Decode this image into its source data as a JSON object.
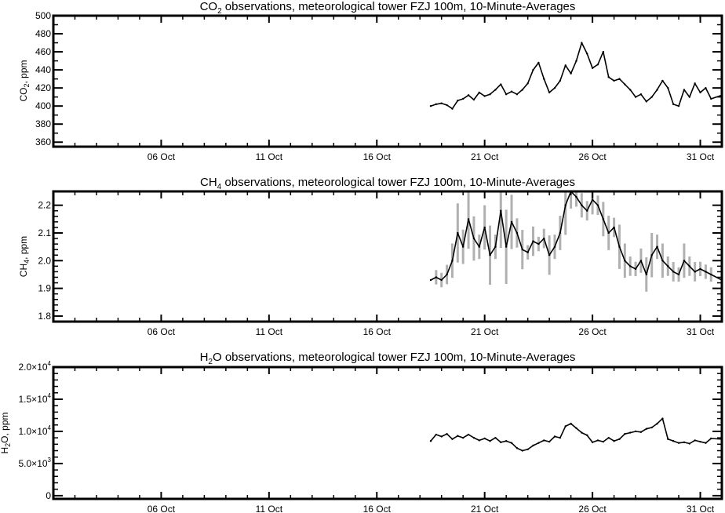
{
  "chart_data": [
    {
      "type": "line",
      "title": {
        "pre": "CO",
        "sub": "2",
        "post": " observations, meteorological tower FZJ 100m, 10-Minute-Averages"
      },
      "ylabel": {
        "pre": "CO",
        "sub": "2",
        "post": ", ppm"
      },
      "x_axis": {
        "type": "date",
        "range": [
          "2023-10-01",
          "2023-11-01"
        ],
        "ticks": [
          "06 Oct",
          "11 Oct",
          "16 Oct",
          "21 Oct",
          "26 Oct",
          "31 Oct"
        ]
      },
      "ylim": [
        355,
        500
      ],
      "y_ticks": [
        {
          "value": 360,
          "label": "360"
        },
        {
          "value": 380,
          "label": "380"
        },
        {
          "value": 400,
          "label": "400"
        },
        {
          "value": 420,
          "label": "420"
        },
        {
          "value": 440,
          "label": "440"
        },
        {
          "value": 460,
          "label": "460"
        },
        {
          "value": 480,
          "label": "480"
        },
        {
          "value": 500,
          "label": "500"
        }
      ],
      "series": [
        {
          "color": "#000000",
          "points": [
            [
              "2023-10-18T12:00",
              400
            ],
            [
              "2023-10-18T18:00",
              402
            ],
            [
              "2023-10-19T00:00",
              403
            ],
            [
              "2023-10-19T06:00",
              401
            ],
            [
              "2023-10-19T12:00",
              397
            ],
            [
              "2023-10-19T18:00",
              406
            ],
            [
              "2023-10-20T00:00",
              408
            ],
            [
              "2023-10-20T06:00",
              412
            ],
            [
              "2023-10-20T12:00",
              407
            ],
            [
              "2023-10-20T18:00",
              415
            ],
            [
              "2023-10-21T00:00",
              411
            ],
            [
              "2023-10-21T06:00",
              413
            ],
            [
              "2023-10-21T12:00",
              418
            ],
            [
              "2023-10-21T18:00",
              424
            ],
            [
              "2023-10-22T00:00",
              413
            ],
            [
              "2023-10-22T06:00",
              416
            ],
            [
              "2023-10-22T12:00",
              413
            ],
            [
              "2023-10-22T18:00",
              418
            ],
            [
              "2023-10-23T00:00",
              425
            ],
            [
              "2023-10-23T06:00",
              440
            ],
            [
              "2023-10-23T12:00",
              448
            ],
            [
              "2023-10-23T18:00",
              430
            ],
            [
              "2023-10-24T00:00",
              415
            ],
            [
              "2023-10-24T06:00",
              420
            ],
            [
              "2023-10-24T12:00",
              428
            ],
            [
              "2023-10-24T18:00",
              445
            ],
            [
              "2023-10-25T00:00",
              436
            ],
            [
              "2023-10-25T06:00",
              450
            ],
            [
              "2023-10-25T12:00",
              470
            ],
            [
              "2023-10-25T18:00",
              458
            ],
            [
              "2023-10-26T00:00",
              442
            ],
            [
              "2023-10-26T06:00",
              446
            ],
            [
              "2023-10-26T12:00",
              460
            ],
            [
              "2023-10-26T18:00",
              432
            ],
            [
              "2023-10-27T00:00",
              428
            ],
            [
              "2023-10-27T06:00",
              430
            ],
            [
              "2023-10-27T12:00",
              424
            ],
            [
              "2023-10-27T18:00",
              418
            ],
            [
              "2023-10-28T00:00",
              410
            ],
            [
              "2023-10-28T06:00",
              413
            ],
            [
              "2023-10-28T12:00",
              405
            ],
            [
              "2023-10-28T18:00",
              410
            ],
            [
              "2023-10-29T00:00",
              418
            ],
            [
              "2023-10-29T06:00",
              428
            ],
            [
              "2023-10-29T12:00",
              420
            ],
            [
              "2023-10-29T18:00",
              402
            ],
            [
              "2023-10-30T00:00",
              400
            ],
            [
              "2023-10-30T06:00",
              418
            ],
            [
              "2023-10-30T12:00",
              410
            ],
            [
              "2023-10-30T18:00",
              425
            ],
            [
              "2023-10-31T00:00",
              415
            ],
            [
              "2023-10-31T06:00",
              420
            ],
            [
              "2023-10-31T12:00",
              408
            ],
            [
              "2023-11-01T00:00",
              412
            ]
          ]
        }
      ]
    },
    {
      "type": "line",
      "title": {
        "pre": "CH",
        "sub": "4",
        "post": " observations, meteorological tower FZJ 100m, 10-Minute-Averages"
      },
      "ylabel": {
        "pre": "CH",
        "sub": "4",
        "post": ", ppm"
      },
      "x_axis": {
        "type": "date",
        "range": [
          "2023-10-01",
          "2023-11-01"
        ],
        "ticks": [
          "06 Oct",
          "11 Oct",
          "16 Oct",
          "21 Oct",
          "26 Oct",
          "31 Oct"
        ]
      },
      "ylim": [
        1.78,
        2.25
      ],
      "y_ticks": [
        {
          "value": 1.8,
          "label": "1.8"
        },
        {
          "value": 1.9,
          "label": "1.9"
        },
        {
          "value": 2.0,
          "label": "2.0"
        },
        {
          "value": 2.1,
          "label": "2.1"
        },
        {
          "value": 2.2,
          "label": "2.2"
        }
      ],
      "series": [
        {
          "color": "#000000",
          "band_color": "#b0b0b0",
          "points": [
            [
              "2023-10-18T12:00",
              1.93
            ],
            [
              "2023-10-18T18:00",
              1.94
            ],
            [
              "2023-10-19T00:00",
              1.93
            ],
            [
              "2023-10-19T06:00",
              1.95
            ],
            [
              "2023-10-19T12:00",
              2.0
            ],
            [
              "2023-10-19T18:00",
              2.1
            ],
            [
              "2023-10-20T00:00",
              2.05
            ],
            [
              "2023-10-20T06:00",
              2.15
            ],
            [
              "2023-10-20T12:00",
              2.08
            ],
            [
              "2023-10-20T18:00",
              2.05
            ],
            [
              "2023-10-21T00:00",
              2.12
            ],
            [
              "2023-10-21T06:00",
              2.02
            ],
            [
              "2023-10-21T12:00",
              2.05
            ],
            [
              "2023-10-21T18:00",
              2.18
            ],
            [
              "2023-10-22T00:00",
              2.05
            ],
            [
              "2023-10-22T06:00",
              2.14
            ],
            [
              "2023-10-22T12:00",
              2.1
            ],
            [
              "2023-10-22T18:00",
              2.04
            ],
            [
              "2023-10-23T00:00",
              2.03
            ],
            [
              "2023-10-23T06:00",
              2.07
            ],
            [
              "2023-10-23T12:00",
              2.06
            ],
            [
              "2023-10-23T18:00",
              2.08
            ],
            [
              "2023-10-24T00:00",
              2.02
            ],
            [
              "2023-10-24T06:00",
              2.05
            ],
            [
              "2023-10-24T12:00",
              2.1
            ],
            [
              "2023-10-24T18:00",
              2.2
            ],
            [
              "2023-10-25T00:00",
              2.25
            ],
            [
              "2023-10-25T06:00",
              2.23
            ],
            [
              "2023-10-25T12:00",
              2.2
            ],
            [
              "2023-10-25T18:00",
              2.18
            ],
            [
              "2023-10-26T00:00",
              2.22
            ],
            [
              "2023-10-26T06:00",
              2.2
            ],
            [
              "2023-10-26T12:00",
              2.15
            ],
            [
              "2023-10-26T18:00",
              2.1
            ],
            [
              "2023-10-27T00:00",
              2.12
            ],
            [
              "2023-10-27T06:00",
              2.05
            ],
            [
              "2023-10-27T12:00",
              2.0
            ],
            [
              "2023-10-27T18:00",
              1.98
            ],
            [
              "2023-10-28T00:00",
              1.97
            ],
            [
              "2023-10-28T06:00",
              2.0
            ],
            [
              "2023-10-28T12:00",
              1.95
            ],
            [
              "2023-10-28T18:00",
              2.02
            ],
            [
              "2023-10-29T00:00",
              2.05
            ],
            [
              "2023-10-29T06:00",
              2.0
            ],
            [
              "2023-10-29T12:00",
              1.98
            ],
            [
              "2023-10-29T18:00",
              1.96
            ],
            [
              "2023-10-30T00:00",
              1.95
            ],
            [
              "2023-10-30T06:00",
              2.0
            ],
            [
              "2023-10-30T12:00",
              1.98
            ],
            [
              "2023-10-30T18:00",
              1.96
            ],
            [
              "2023-10-31T00:00",
              1.97
            ],
            [
              "2023-10-31T06:00",
              1.96
            ],
            [
              "2023-10-31T12:00",
              1.95
            ],
            [
              "2023-11-01T00:00",
              1.93
            ]
          ]
        }
      ]
    },
    {
      "type": "line",
      "title": {
        "pre": "H",
        "sub": "2",
        "post": "O observations, meteorological tower FZJ 100m, 10-Minute-Averages"
      },
      "ylabel": {
        "pre": "H",
        "sub": "2",
        "post": "O, ppm"
      },
      "x_axis": {
        "type": "date",
        "range": [
          "2023-10-01",
          "2023-11-01"
        ],
        "ticks": [
          "06 Oct",
          "11 Oct",
          "16 Oct",
          "21 Oct",
          "26 Oct",
          "31 Oct"
        ]
      },
      "ylim": [
        -500,
        20000
      ],
      "y_ticks": [
        {
          "value": 0,
          "label": "0"
        },
        {
          "value": 5000,
          "mantissa": "5.0",
          "exponent": "3"
        },
        {
          "value": 10000,
          "mantissa": "1.0",
          "exponent": "4"
        },
        {
          "value": 15000,
          "mantissa": "1.5",
          "exponent": "4"
        },
        {
          "value": 20000,
          "mantissa": "2.0",
          "exponent": "4"
        }
      ],
      "series": [
        {
          "color": "#000000",
          "points": [
            [
              "2023-10-18T12:00",
              8500
            ],
            [
              "2023-10-18T18:00",
              9500
            ],
            [
              "2023-10-19T00:00",
              9200
            ],
            [
              "2023-10-19T06:00",
              9600
            ],
            [
              "2023-10-19T12:00",
              8800
            ],
            [
              "2023-10-19T18:00",
              9300
            ],
            [
              "2023-10-20T00:00",
              9000
            ],
            [
              "2023-10-20T06:00",
              9500
            ],
            [
              "2023-10-20T12:00",
              9000
            ],
            [
              "2023-10-20T18:00",
              8600
            ],
            [
              "2023-10-21T00:00",
              8900
            ],
            [
              "2023-10-21T06:00",
              8500
            ],
            [
              "2023-10-21T12:00",
              9000
            ],
            [
              "2023-10-21T18:00",
              8300
            ],
            [
              "2023-10-22T00:00",
              8500
            ],
            [
              "2023-10-22T06:00",
              8200
            ],
            [
              "2023-10-22T12:00",
              7400
            ],
            [
              "2023-10-22T18:00",
              7000
            ],
            [
              "2023-10-23T00:00",
              7200
            ],
            [
              "2023-10-23T06:00",
              7800
            ],
            [
              "2023-10-23T12:00",
              8200
            ],
            [
              "2023-10-23T18:00",
              8600
            ],
            [
              "2023-10-24T00:00",
              8400
            ],
            [
              "2023-10-24T06:00",
              9200
            ],
            [
              "2023-10-24T12:00",
              9000
            ],
            [
              "2023-10-24T18:00",
              10800
            ],
            [
              "2023-10-25T00:00",
              11200
            ],
            [
              "2023-10-25T06:00",
              10500
            ],
            [
              "2023-10-25T12:00",
              9800
            ],
            [
              "2023-10-25T18:00",
              9400
            ],
            [
              "2023-10-26T00:00",
              8300
            ],
            [
              "2023-10-26T06:00",
              8600
            ],
            [
              "2023-10-26T12:00",
              8400
            ],
            [
              "2023-10-26T18:00",
              9000
            ],
            [
              "2023-10-27T00:00",
              8500
            ],
            [
              "2023-10-27T06:00",
              8800
            ],
            [
              "2023-10-27T12:00",
              9600
            ],
            [
              "2023-10-27T18:00",
              9800
            ],
            [
              "2023-10-28T00:00",
              10000
            ],
            [
              "2023-10-28T06:00",
              9900
            ],
            [
              "2023-10-28T12:00",
              10400
            ],
            [
              "2023-10-28T18:00",
              10600
            ],
            [
              "2023-10-29T00:00",
              11200
            ],
            [
              "2023-10-29T06:00",
              12000
            ],
            [
              "2023-10-29T12:00",
              8800
            ],
            [
              "2023-10-29T18:00",
              8500
            ],
            [
              "2023-10-30T00:00",
              8200
            ],
            [
              "2023-10-30T06:00",
              8300
            ],
            [
              "2023-10-30T12:00",
              8100
            ],
            [
              "2023-10-30T18:00",
              8600
            ],
            [
              "2023-10-31T00:00",
              8400
            ],
            [
              "2023-10-31T06:00",
              8200
            ],
            [
              "2023-10-31T12:00",
              8900
            ],
            [
              "2023-11-01T00:00",
              8800
            ]
          ]
        }
      ]
    }
  ]
}
